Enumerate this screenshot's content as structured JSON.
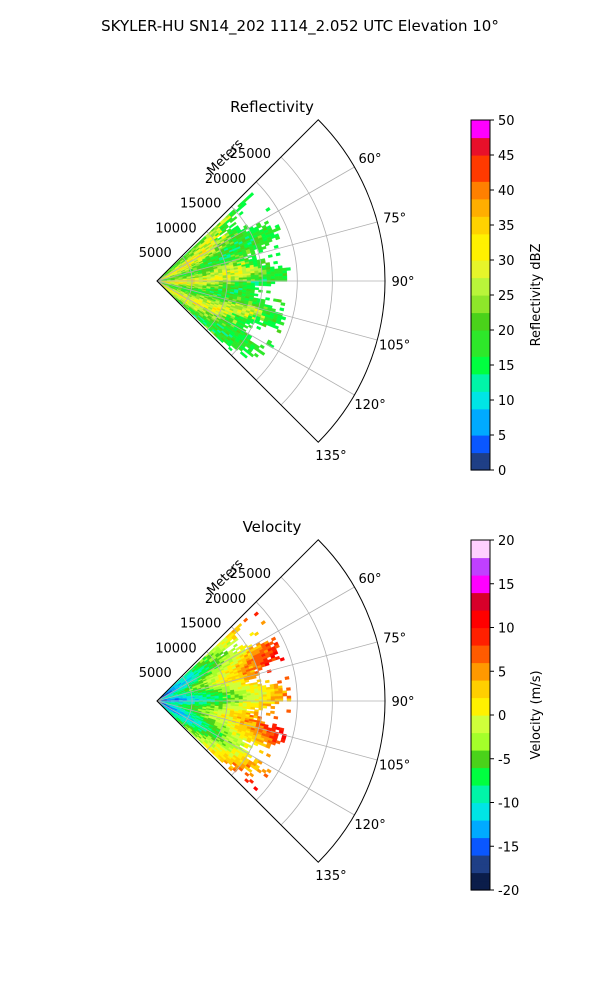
{
  "figure_title": "SKYLER-HU  SN14_202  1114_2.052 UTC Elevation 10°",
  "chart_data": [
    {
      "type": "heatmap",
      "title": "Reflectivity",
      "radial_label": "Meters",
      "r_ticks": [
        5000,
        10000,
        15000,
        20000,
        25000
      ],
      "r_max": 32500,
      "azimuth_ticks": [
        "60°",
        "75°",
        "90°",
        "105°",
        "120°",
        "135°"
      ],
      "azimuth_range": [
        45,
        135
      ],
      "data_extent_m": 19000,
      "colorbar": {
        "label": "Reflectivity dBZ",
        "min": 0,
        "max": 50,
        "ticks": [
          0,
          5,
          10,
          15,
          20,
          25,
          30,
          35,
          40,
          45,
          50
        ]
      },
      "palette": [
        "#0b1d4a",
        "#1f3f86",
        "#0a57ff",
        "#1f4d3e",
        "#00aaff",
        "#00e5e5",
        "#00f5a8",
        "#00ff40",
        "#4ad21a",
        "#a4ff2a",
        "#cfff3a",
        "#fff100",
        "#ffcf00",
        "#ff9900",
        "#ff5b00",
        "#ff0000",
        "#d7002a",
        "#ff00ff",
        "#c040ff",
        "#ffd0ff"
      ]
    },
    {
      "type": "heatmap",
      "title": "Velocity",
      "radial_label": "Meters",
      "r_ticks": [
        5000,
        10000,
        15000,
        20000,
        25000
      ],
      "r_max": 32500,
      "azimuth_ticks": [
        "60°",
        "75°",
        "90°",
        "105°",
        "120°",
        "135°"
      ],
      "azimuth_range": [
        45,
        135
      ],
      "data_extent_m": 19000,
      "colorbar": {
        "label": "Velocity (m/s)",
        "min": -20,
        "max": 20,
        "ticks": [
          -20,
          -15,
          -10,
          -5,
          0,
          5,
          10,
          15,
          20
        ]
      },
      "palette": [
        "#0b1d4a",
        "#1f3f86",
        "#0a57ff",
        "#1f4d3e",
        "#00aaff",
        "#00e5e5",
        "#00f5a8",
        "#00ff40",
        "#4ad21a",
        "#a4ff2a",
        "#cfff3a",
        "#fff100",
        "#ffcf00",
        "#ff9900",
        "#ff5b00",
        "#ff0000",
        "#d7002a",
        "#ff00ff",
        "#c040ff",
        "#ffd0ff"
      ]
    }
  ]
}
